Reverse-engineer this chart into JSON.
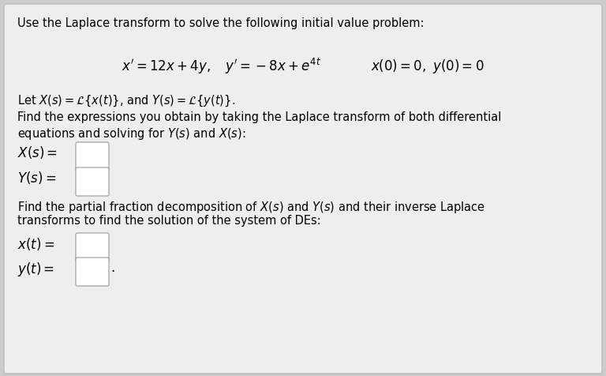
{
  "bg_color": "#cccccc",
  "box_color": "#eeeeee",
  "box_edge_color": "#bbbbbb",
  "title_text": "Use the Laplace transform to solve the following initial value problem:",
  "font_size_title": 10.5,
  "font_size_eq": 12,
  "font_size_body": 10.5,
  "font_size_label": 12
}
